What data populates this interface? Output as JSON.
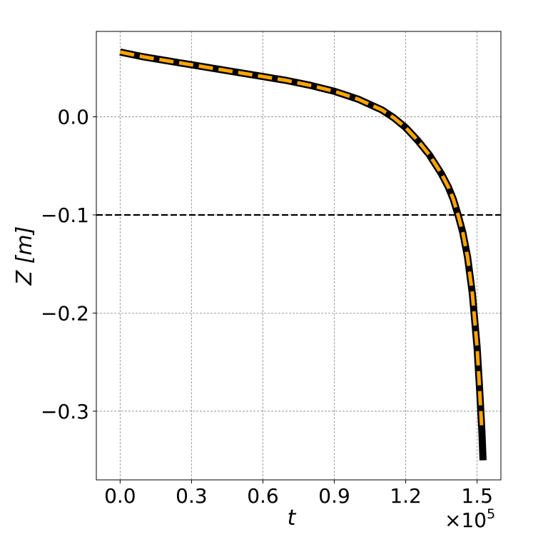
{
  "chart_data": {
    "type": "line",
    "xlabel": "t",
    "ylabel": "Z [m]",
    "x_offset_text": "×10",
    "x_offset_exponent": "5",
    "xlim": [
      -0.1,
      1.6
    ],
    "ylim": [
      -0.37,
      0.087
    ],
    "xticks": [
      0.0,
      0.3,
      0.6,
      0.9,
      1.2,
      1.5
    ],
    "xtick_labels": [
      "0.0",
      "0.3",
      "0.6",
      "0.9",
      "1.2",
      "1.5"
    ],
    "yticks": [
      0.0,
      -0.1,
      -0.2,
      -0.3
    ],
    "ytick_labels": [
      "0.0",
      "−0.1",
      "−0.2",
      "−0.3"
    ],
    "grid": true,
    "reference_line": {
      "y": -0.1,
      "style": "dashed",
      "color": "#000000"
    },
    "series": [
      {
        "color": "#000000",
        "style": "solid",
        "x": [
          0.0,
          0.1,
          0.2,
          0.3,
          0.4,
          0.5,
          0.6,
          0.7,
          0.8,
          0.9,
          1.0,
          1.1,
          1.15,
          1.2,
          1.25,
          1.3,
          1.35,
          1.38,
          1.4,
          1.42,
          1.44,
          1.46,
          1.48,
          1.5,
          1.51,
          1.52,
          1.525
        ],
        "y": [
          0.066,
          0.061,
          0.057,
          0.053,
          0.049,
          0.045,
          0.041,
          0.037,
          0.032,
          0.026,
          0.018,
          0.007,
          -0.001,
          -0.011,
          -0.024,
          -0.039,
          -0.058,
          -0.072,
          -0.084,
          -0.1,
          -0.118,
          -0.143,
          -0.18,
          -0.235,
          -0.275,
          -0.32,
          -0.35
        ]
      },
      {
        "color": "#ffa500",
        "style": "dashed",
        "x": [
          0.0,
          0.1,
          0.2,
          0.3,
          0.4,
          0.5,
          0.6,
          0.7,
          0.8,
          0.9,
          1.0,
          1.1,
          1.15,
          1.2,
          1.25,
          1.3,
          1.35,
          1.38,
          1.4,
          1.42,
          1.44,
          1.46,
          1.48,
          1.5,
          1.51,
          1.52
        ],
        "y": [
          0.066,
          0.061,
          0.057,
          0.053,
          0.049,
          0.045,
          0.041,
          0.037,
          0.032,
          0.026,
          0.018,
          0.007,
          -0.001,
          -0.011,
          -0.024,
          -0.039,
          -0.058,
          -0.072,
          -0.084,
          -0.1,
          -0.118,
          -0.143,
          -0.18,
          -0.235,
          -0.275,
          -0.32
        ]
      }
    ]
  }
}
